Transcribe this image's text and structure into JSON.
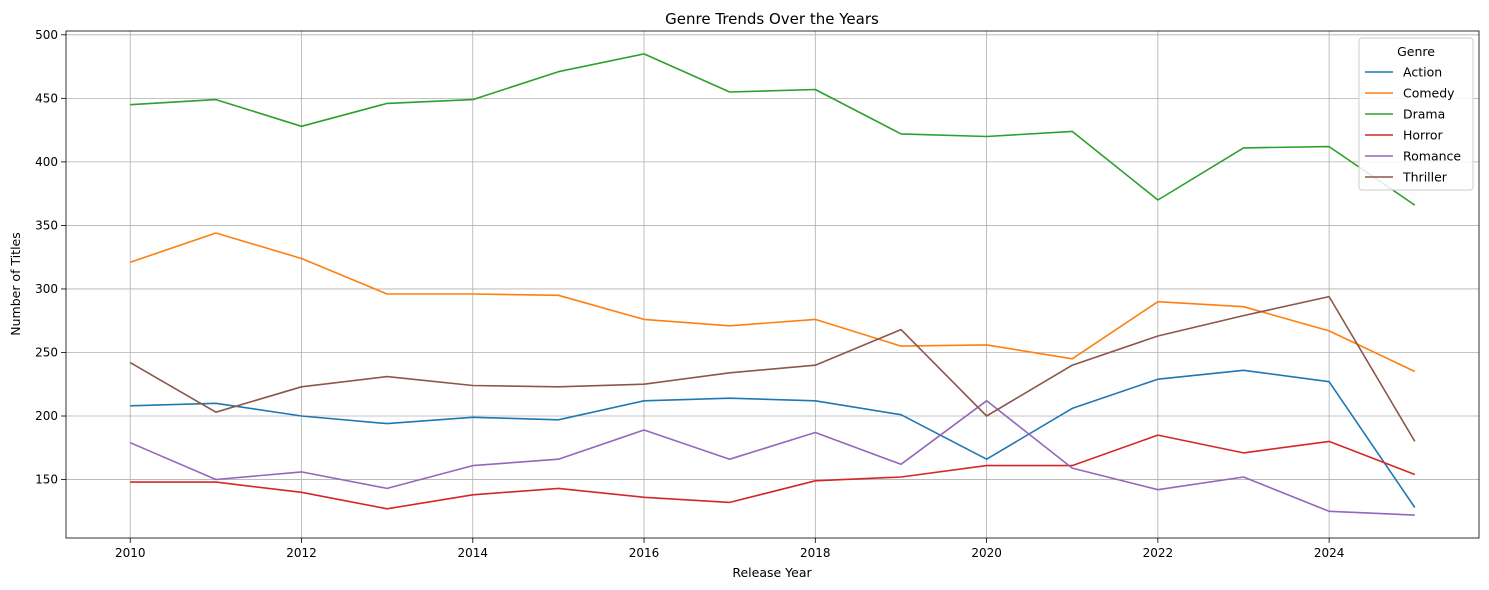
{
  "chart_data": {
    "type": "line",
    "title": "Genre Trends Over the Years",
    "xlabel": "Release Year",
    "ylabel": "Number of Titles",
    "x": [
      2010,
      2011,
      2012,
      2013,
      2014,
      2015,
      2016,
      2017,
      2018,
      2019,
      2020,
      2021,
      2022,
      2023,
      2024,
      2025
    ],
    "xlim": [
      2009.25,
      2025.75
    ],
    "ylim": [
      104,
      503
    ],
    "xticks": [
      2010,
      2012,
      2014,
      2016,
      2018,
      2020,
      2022,
      2024
    ],
    "yticks": [
      150,
      200,
      250,
      300,
      350,
      400,
      450,
      500
    ],
    "grid": true,
    "legend_title": "Genre",
    "legend_position": "top-right",
    "series": [
      {
        "name": "Action",
        "color": "#1f77b4",
        "values": [
          208,
          210,
          200,
          194,
          199,
          197,
          212,
          214,
          212,
          201,
          166,
          206,
          229,
          236,
          227,
          128
        ]
      },
      {
        "name": "Comedy",
        "color": "#ff7f0e",
        "values": [
          321,
          344,
          324,
          296,
          296,
          295,
          276,
          271,
          276,
          255,
          256,
          245,
          290,
          286,
          267,
          235
        ]
      },
      {
        "name": "Drama",
        "color": "#2ca02c",
        "values": [
          445,
          449,
          428,
          446,
          449,
          471,
          485,
          455,
          457,
          422,
          420,
          424,
          370,
          411,
          412,
          366
        ]
      },
      {
        "name": "Horror",
        "color": "#d62728",
        "values": [
          148,
          148,
          140,
          127,
          138,
          143,
          136,
          132,
          149,
          152,
          161,
          161,
          185,
          171,
          180,
          154
        ]
      },
      {
        "name": "Romance",
        "color": "#9467bd",
        "values": [
          179,
          150,
          156,
          143,
          161,
          166,
          189,
          166,
          187,
          162,
          212,
          159,
          142,
          152,
          125,
          122
        ]
      },
      {
        "name": "Thriller",
        "color": "#8c564b",
        "values": [
          242,
          203,
          223,
          231,
          224,
          223,
          225,
          234,
          240,
          268,
          200,
          240,
          263,
          279,
          294,
          180
        ]
      }
    ]
  }
}
